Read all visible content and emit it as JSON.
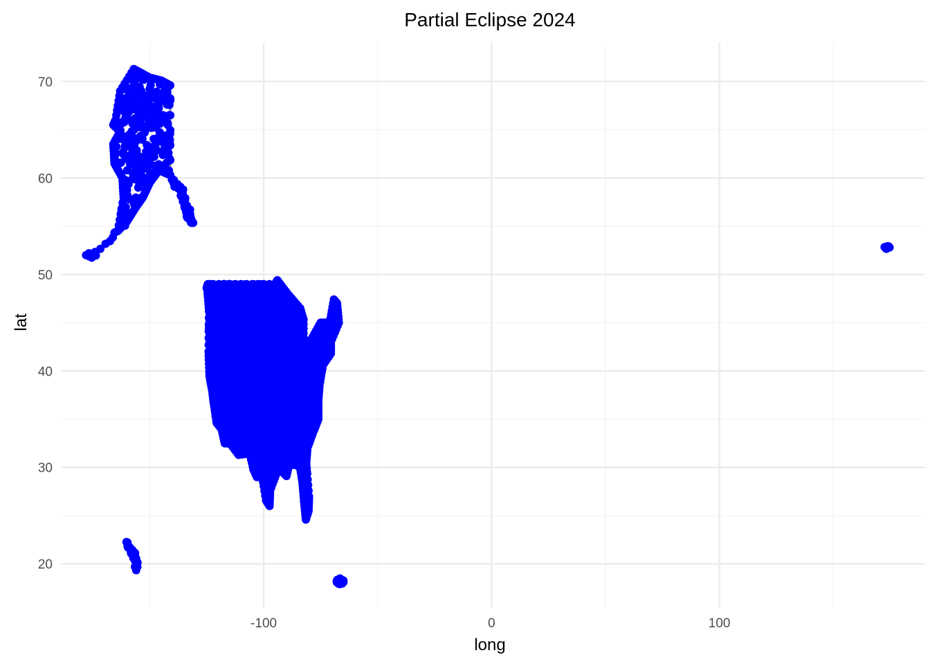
{
  "chart_data": {
    "type": "scatter",
    "title": "Partial Eclipse 2024",
    "xlabel": "long",
    "ylabel": "lat",
    "xlim": [
      -189,
      190
    ],
    "ylim": [
      15.5,
      74
    ],
    "x_ticks": [
      -100,
      0,
      100
    ],
    "x_tick_labels": [
      "-100",
      "0",
      "100"
    ],
    "x_minor_ticks": [
      -150,
      -50,
      50,
      150
    ],
    "y_ticks": [
      20,
      30,
      40,
      50,
      60,
      70
    ],
    "y_tick_labels": [
      "20",
      "30",
      "40",
      "50",
      "60",
      "70"
    ],
    "y_minor_ticks": [
      25,
      35,
      45,
      55,
      65
    ],
    "grid": true,
    "legend": "none",
    "colors": {
      "points": "#0000ff",
      "outline": "#8c8c8c",
      "grid_major": "#ebebeb",
      "grid_minor": "#f3f3f3"
    },
    "series": [
      {
        "type": "points",
        "point_groups": [
          {
            "kind": "polygon",
            "points": [
              [
                -125,
                48.6
              ],
              [
                -124.5,
                49.0
              ],
              [
                -110,
                49.0
              ],
              [
                -95,
                49.0
              ],
              [
                -94,
                49.4
              ],
              [
                -89.5,
                48.0
              ],
              [
                -84,
                46.5
              ],
              [
                -82.5,
                45.3
              ],
              [
                -82.5,
                42.5
              ],
              [
                -79,
                43.3
              ],
              [
                -75,
                45.0
              ],
              [
                -71,
                45.0
              ],
              [
                -69.2,
                47.4
              ],
              [
                -67.8,
                47.0
              ],
              [
                -67.0,
                45.0
              ],
              [
                -70.5,
                43.0
              ],
              [
                -70.5,
                41.8
              ],
              [
                -74,
                40.6
              ],
              [
                -75.5,
                38.5
              ],
              [
                -76,
                37
              ],
              [
                -76,
                35
              ],
              [
                -78,
                33.8
              ],
              [
                -80.8,
                32.0
              ],
              [
                -81.3,
                30.5
              ],
              [
                -80.1,
                27
              ],
              [
                -80.3,
                25.5
              ],
              [
                -81.5,
                24.6
              ],
              [
                -82.3,
                26.5
              ],
              [
                -83,
                28.5
              ],
              [
                -84,
                30
              ],
              [
                -86,
                30.3
              ],
              [
                -89,
                30.2
              ],
              [
                -90,
                29.1
              ],
              [
                -92,
                29.6
              ],
              [
                -94,
                29.6
              ],
              [
                -97.2,
                27.6
              ],
              [
                -97.4,
                26
              ],
              [
                -99,
                26.6
              ],
              [
                -101,
                29.5
              ],
              [
                -103,
                29
              ],
              [
                -104.5,
                29.8
              ],
              [
                -106.5,
                31.8
              ],
              [
                -108.2,
                31.4
              ],
              [
                -111,
                31.3
              ],
              [
                -114.8,
                32.5
              ],
              [
                -117.1,
                32.5
              ],
              [
                -118.5,
                34
              ],
              [
                -120.6,
                34.6
              ],
              [
                -121.9,
                36.6
              ],
              [
                -122.5,
                37.8
              ],
              [
                -123.8,
                39.5
              ],
              [
                -124.2,
                42
              ],
              [
                -124,
                46.2
              ],
              [
                -124.7,
                48.4
              ]
            ],
            "count": 5200
          },
          {
            "kind": "polygon",
            "points": [
              [
                -165,
                66
              ],
              [
                -163,
                69
              ],
              [
                -157,
                71.3
              ],
              [
                -150,
                70.4
              ],
              [
                -145,
                70.1
              ],
              [
                -141,
                69.6
              ],
              [
                -141,
                60.3
              ],
              [
                -146,
                60.8
              ],
              [
                -150,
                59.5
              ],
              [
                -153,
                58
              ],
              [
                -156,
                57
              ],
              [
                -160,
                55.5
              ],
              [
                -164,
                54.5
              ],
              [
                -161.5,
                58
              ],
              [
                -162,
                60
              ],
              [
                -165.5,
                61.5
              ],
              [
                -166,
                63.5
              ],
              [
                -163,
                64.8
              ],
              [
                -166,
                65.5
              ]
            ],
            "count": 320
          },
          {
            "kind": "line",
            "points": [
              [
                -140,
                59.6
              ],
              [
                -136,
                58.5
              ],
              [
                -133,
                56.5
              ],
              [
                -131,
                55.2
              ]
            ],
            "count": 45
          },
          {
            "kind": "line",
            "points": [
              [
                -136.5,
                59.5
              ],
              [
                -134.5,
                57
              ],
              [
                -131.5,
                55.3
              ]
            ],
            "count": 25
          },
          {
            "kind": "line",
            "points": [
              [
                -178,
                51.9
              ],
              [
                -173,
                52.2
              ],
              [
                -168,
                53.2
              ],
              [
                -163.5,
                54.7
              ],
              [
                -160,
                55.5
              ]
            ],
            "count": 18
          },
          {
            "kind": "line",
            "points": [
              [
                -160.2,
                22.2
              ],
              [
                -158,
                21.4
              ],
              [
                -156.5,
                20.6
              ],
              [
                -155.5,
                19.5
              ]
            ],
            "count": 40
          },
          {
            "kind": "blob",
            "center": [
              -66.5,
              18.2
            ],
            "radius": [
              1.6,
              0.3
            ],
            "count": 40
          },
          {
            "kind": "blob",
            "center": [
              173.5,
              52.8
            ],
            "radius": [
              1.2,
              0.15
            ],
            "count": 12
          }
        ]
      }
    ]
  }
}
